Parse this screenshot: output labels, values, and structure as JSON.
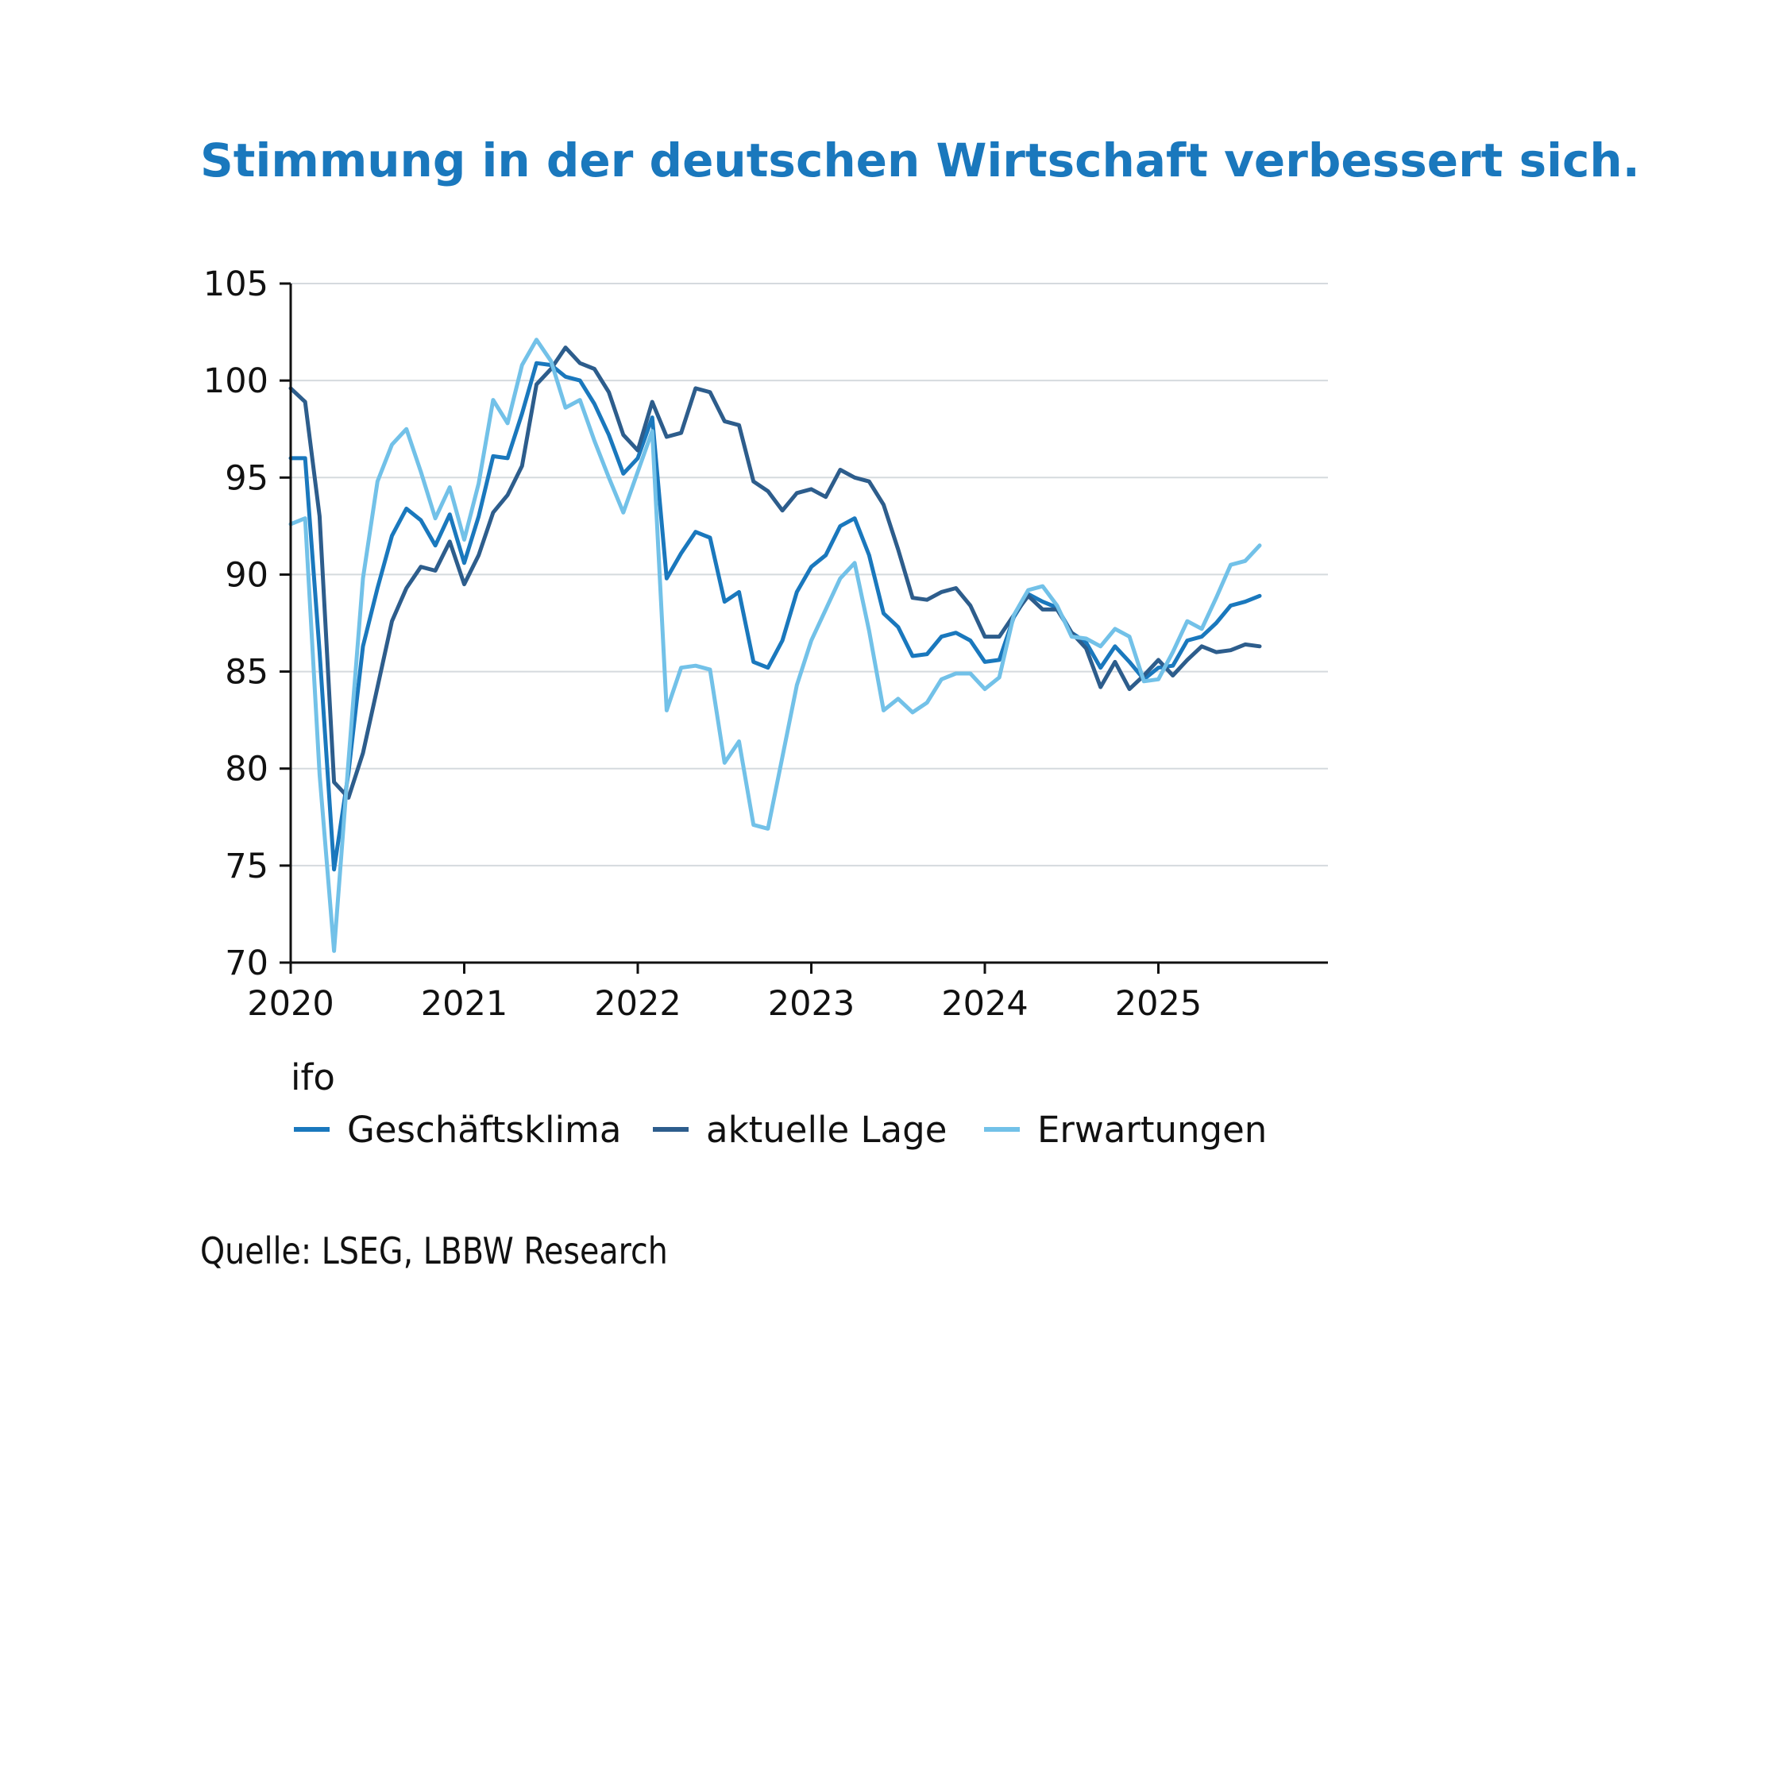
{
  "chart_data": {
    "type": "line",
    "title": "Stimmung in der deutschen Wirtschaft verbessert sich.",
    "xlabel": "",
    "ylabel": "",
    "ylim": [
      70,
      105
    ],
    "yticks": [
      70,
      75,
      80,
      85,
      90,
      95,
      100,
      105
    ],
    "xlim": [
      2020,
      2026
    ],
    "xticks": [
      2020,
      2021,
      2022,
      2023,
      2024,
      2025
    ],
    "grid": "horizontal",
    "legend_title": "ifo",
    "legend_placement": "bottom",
    "series": [
      {
        "name": "Geschäftsklima",
        "color": "#1a78bd",
        "values": [
          96.0,
          96.0,
          86.0,
          74.8,
          79.8,
          86.3,
          89.3,
          92.0,
          93.4,
          92.8,
          91.5,
          93.1,
          90.6,
          93.0,
          96.1,
          96.0,
          98.3,
          100.9,
          100.8,
          100.2,
          100.0,
          98.8,
          97.2,
          95.2,
          96.0,
          98.1,
          89.8,
          91.1,
          92.2,
          91.9,
          88.6,
          89.1,
          85.5,
          85.2,
          86.6,
          89.1,
          90.4,
          91.0,
          92.5,
          92.9,
          91.0,
          88.0,
          87.3,
          85.8,
          85.9,
          86.8,
          87.0,
          86.6,
          85.5,
          85.6,
          87.8,
          89.0,
          88.6,
          88.3,
          87.0,
          86.5,
          85.2,
          86.3,
          85.5,
          84.6,
          85.2,
          85.3,
          86.6,
          86.8,
          87.5,
          88.4,
          88.6,
          88.9
        ]
      },
      {
        "name": "aktuelle Lage",
        "color": "#2d5d8c",
        "values": [
          99.6,
          98.9,
          93.0,
          79.3,
          78.5,
          80.8,
          84.2,
          87.6,
          89.3,
          90.4,
          90.2,
          91.7,
          89.5,
          91.0,
          93.2,
          94.1,
          95.6,
          99.8,
          100.6,
          101.7,
          100.9,
          100.6,
          99.4,
          97.2,
          96.4,
          98.9,
          97.1,
          97.3,
          99.6,
          99.4,
          97.9,
          97.7,
          94.8,
          94.3,
          93.3,
          94.2,
          94.4,
          94.0,
          95.4,
          95.0,
          94.8,
          93.6,
          91.3,
          88.8,
          88.7,
          89.1,
          89.3,
          88.4,
          86.8,
          86.8,
          87.9,
          88.9,
          88.2,
          88.2,
          87.0,
          86.2,
          84.2,
          85.5,
          84.1,
          84.8,
          85.6,
          84.8,
          85.6,
          86.3,
          86.0,
          86.1,
          86.4,
          86.3
        ]
      },
      {
        "name": "Erwartungen",
        "color": "#72c1e8",
        "values": [
          92.6,
          92.9,
          79.7,
          70.6,
          80.4,
          89.8,
          94.8,
          96.7,
          97.5,
          95.3,
          92.9,
          94.5,
          91.8,
          94.7,
          99.0,
          97.8,
          100.8,
          102.1,
          101.0,
          98.6,
          99.0,
          96.9,
          95.0,
          93.2,
          95.3,
          97.4,
          83.0,
          85.2,
          85.3,
          85.1,
          80.3,
          81.4,
          77.1,
          76.9,
          80.6,
          84.3,
          86.6,
          88.2,
          89.8,
          90.6,
          87.1,
          83.0,
          83.6,
          82.9,
          83.4,
          84.6,
          84.9,
          84.9,
          84.1,
          84.7,
          87.9,
          89.2,
          89.4,
          88.4,
          86.8,
          86.7,
          86.3,
          87.2,
          86.8,
          84.5,
          84.6,
          86.0,
          87.6,
          87.2,
          88.8,
          90.5,
          90.7,
          91.5
        ]
      }
    ]
  },
  "source": "Quelle: LSEG, LBBW Research"
}
